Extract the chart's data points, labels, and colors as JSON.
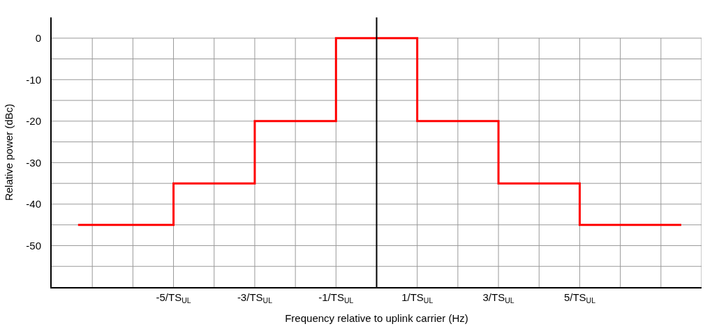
{
  "chart_data": {
    "type": "step",
    "xlabel": "Frequency relative to uplink carrier (Hz)",
    "ylabel": "Relative power (dBc)",
    "x": [
      -7.35,
      -5,
      -3,
      -1,
      1,
      3,
      5,
      7.5
    ],
    "series": [
      {
        "color": "#ff0000",
        "values": [
          -45,
          -35,
          -20,
          0,
          -20,
          -35,
          -45,
          -45
        ]
      }
    ],
    "xlim": [
      -8,
      8
    ],
    "xticks": [
      {
        "value": -7,
        "label": null
      },
      {
        "value": -6,
        "label": null
      },
      {
        "value": -5,
        "label": "-5/TS$_{UL}$"
      },
      {
        "value": -4,
        "label": null
      },
      {
        "value": -3,
        "label": "-3/TS$_{UL}$"
      },
      {
        "value": -2,
        "label": null
      },
      {
        "value": -1,
        "label": "-1/TS$_{UL}$"
      },
      {
        "value": 0,
        "label": null
      },
      {
        "value": 1,
        "label": "1/TS$_{UL}$"
      },
      {
        "value": 2,
        "label": null
      },
      {
        "value": 3,
        "label": "3/TS$_{UL}$"
      },
      {
        "value": 4,
        "label": null
      },
      {
        "value": 5,
        "label": "5/TS$_{UL}$"
      },
      {
        "value": 6,
        "label": null
      },
      {
        "value": 7,
        "label": null
      },
      {
        "value": 8,
        "label": null
      }
    ],
    "ylim": [
      -60,
      5
    ],
    "yticks": [
      {
        "value": -55,
        "label": null
      },
      -50,
      {
        "value": -45,
        "label": null
      },
      -40,
      {
        "value": -35,
        "label": null
      },
      -30,
      {
        "value": -25,
        "label": null
      },
      -20,
      {
        "value": -15,
        "label": null
      },
      -10,
      {
        "value": -5,
        "label": null
      },
      0
    ],
    "grid": true,
    "marker": "none",
    "line_style": "solid",
    "ref_lines": [
      {
        "axis": "x",
        "value": 0,
        "color": "#000000"
      }
    ]
  }
}
